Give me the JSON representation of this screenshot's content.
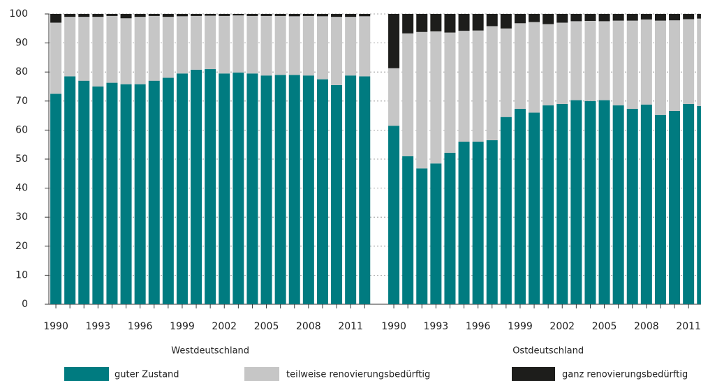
{
  "chart_data": {
    "type": "bar",
    "stacked": true,
    "ylim": [
      0,
      100
    ],
    "yticks": [
      0,
      10,
      20,
      30,
      40,
      50,
      60,
      70,
      80,
      90,
      100
    ],
    "grid": true,
    "categories": [
      "1990",
      null,
      null,
      "1993",
      null,
      null,
      "1996",
      null,
      null,
      "1999",
      null,
      null,
      "2002",
      null,
      null,
      "2005",
      null,
      null,
      "2008",
      null,
      null,
      "2011",
      null
    ],
    "series": [
      {
        "name": "guter Zustand",
        "color": "#007b80"
      },
      {
        "name": "teilweise renovierungsbedürftig",
        "color": "#c6c6c6"
      },
      {
        "name": "ganz  renovierungsbedürftig",
        "color": "#1d1d1b"
      }
    ],
    "panels": [
      {
        "label": "Westdeutschland",
        "values": [
          [
            72.5,
            78.5,
            77,
            75,
            76.3,
            75.8,
            75.8,
            77,
            78,
            79.5,
            80.8,
            81,
            79.5,
            79.8,
            79.5,
            78.8,
            79,
            79,
            78.8,
            77.5,
            75.5,
            78.8,
            78.5
          ],
          [
            24.5,
            20.5,
            22,
            24,
            23,
            22.7,
            23.2,
            22.3,
            21,
            19.7,
            18.5,
            18.4,
            19.8,
            19.7,
            19.8,
            20.5,
            20.3,
            20.2,
            20.5,
            21.7,
            23.5,
            20.2,
            20.7
          ],
          [
            3,
            1,
            1,
            1,
            0.7,
            1.5,
            1,
            0.7,
            1,
            0.8,
            0.7,
            0.6,
            0.7,
            0.5,
            0.7,
            0.7,
            0.7,
            0.8,
            0.7,
            0.8,
            1,
            1,
            0.8
          ]
        ]
      },
      {
        "label": "Ostdeutschland",
        "values": [
          [
            61.5,
            51,
            46.8,
            48.5,
            52.2,
            56,
            56,
            56.5,
            64.5,
            67.3,
            66,
            68.5,
            69,
            70.3,
            70,
            70.3,
            68.5,
            67.3,
            68.8,
            65.2,
            66.6,
            69,
            68.3
          ],
          [
            19.8,
            42.3,
            47,
            45.5,
            41.4,
            38.2,
            38.3,
            39.3,
            30.5,
            29.5,
            31.2,
            28,
            28,
            27.2,
            27.6,
            27.2,
            29.2,
            30.4,
            29.3,
            32.5,
            31.2,
            29.2,
            30.1
          ],
          [
            18.7,
            6.7,
            6.2,
            6,
            6.4,
            5.8,
            5.7,
            4.2,
            5,
            3.2,
            2.8,
            3.5,
            3,
            2.5,
            2.4,
            2.5,
            2.3,
            2.3,
            1.9,
            2.3,
            2.2,
            1.8,
            1.6
          ]
        ]
      }
    ]
  }
}
